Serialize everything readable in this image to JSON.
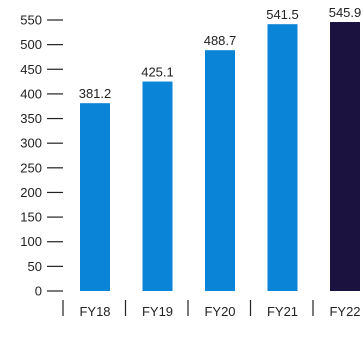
{
  "chart_data": {
    "type": "bar",
    "categories": [
      "FY18",
      "FY19",
      "FY20",
      "FY21",
      "FY22"
    ],
    "values": [
      381.2,
      425.1,
      488.7,
      541.5,
      545.9
    ],
    "data_labels": [
      "381.2",
      "425.1",
      "488.7",
      "541.5",
      "545.9"
    ],
    "title": "",
    "xlabel": "",
    "ylabel": "",
    "ylim": [
      0,
      550
    ],
    "yticks": [
      0,
      50,
      100,
      150,
      200,
      250,
      300,
      350,
      400,
      450,
      500,
      550
    ],
    "ytick_labels": [
      "0",
      "50",
      "100",
      "150",
      "200",
      "250",
      "300",
      "350",
      "400",
      "450",
      "500",
      "550"
    ],
    "grid": false,
    "colors": {
      "bar": "#0a84d6",
      "highlight_bar": "#1c1240",
      "axis": "#222222",
      "text": "#222222"
    },
    "highlight_category": "FY22"
  }
}
